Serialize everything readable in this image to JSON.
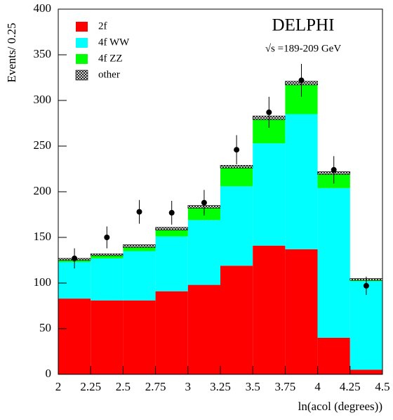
{
  "chart_data": {
    "type": "histogram",
    "title": "DELPHI",
    "subtitle": "√s =189-209 GeV",
    "x_label": "ln(acol (degrees))",
    "y_label": "Events/ 0.25",
    "bins": [
      2,
      2.25,
      2.5,
      2.75,
      3,
      3.25,
      3.5,
      3.75,
      4,
      4.25,
      4.5
    ],
    "series": [
      {
        "name": "2f",
        "color": "#ff0000",
        "values": [
          83,
          81,
          81,
          91,
          98,
          119,
          141,
          137,
          40,
          5
        ]
      },
      {
        "name": "4f WW",
        "color": "#00ffff",
        "values": [
          40,
          46,
          54,
          60,
          71,
          87,
          112,
          148,
          164,
          97
        ]
      },
      {
        "name": "4f ZZ",
        "color": "#00ff00",
        "values": [
          2,
          3,
          4,
          7,
          13,
          20,
          26,
          32,
          15,
          1
        ]
      },
      {
        "name": "other",
        "color": "#000000",
        "values": [
          2,
          2,
          3,
          3,
          3,
          3,
          4,
          4,
          3,
          2
        ]
      }
    ],
    "points": {
      "values": [
        127,
        150,
        178,
        177,
        188,
        246,
        287,
        322,
        224,
        97
      ],
      "errors": [
        11,
        12,
        13,
        13,
        14,
        16,
        17,
        18,
        15,
        10
      ]
    },
    "xlim": [
      2,
      4.5
    ],
    "xticks": [
      2,
      2.25,
      2.5,
      2.75,
      3,
      3.25,
      3.5,
      3.75,
      4,
      4.25,
      4.5
    ],
    "ylim": [
      0,
      400
    ],
    "yticks": [
      0,
      50,
      100,
      150,
      200,
      250,
      300,
      350,
      400
    ]
  }
}
